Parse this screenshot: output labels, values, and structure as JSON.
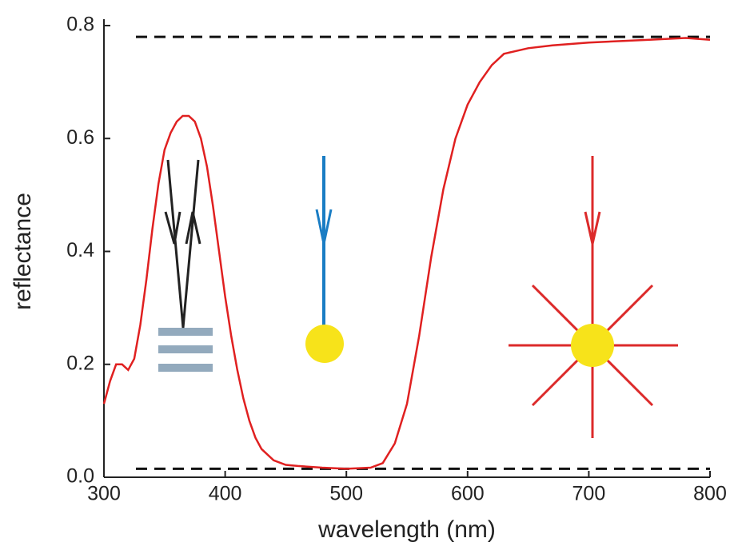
{
  "chart_data": {
    "type": "line",
    "xlabel": "wavelength (nm)",
    "ylabel": "reflectance",
    "x": [
      300,
      305,
      310,
      315,
      320,
      325,
      330,
      335,
      340,
      345,
      350,
      355,
      360,
      365,
      370,
      375,
      380,
      385,
      390,
      395,
      400,
      405,
      410,
      415,
      420,
      425,
      430,
      440,
      450,
      460,
      480,
      500,
      520,
      530,
      540,
      550,
      560,
      570,
      580,
      590,
      600,
      610,
      620,
      630,
      640,
      650,
      670,
      700,
      750,
      780,
      800
    ],
    "series": [
      {
        "color": "#e02020",
        "values": [
          0.13,
          0.17,
          0.2,
          0.2,
          0.19,
          0.21,
          0.27,
          0.35,
          0.44,
          0.52,
          0.58,
          0.61,
          0.63,
          0.64,
          0.64,
          0.63,
          0.6,
          0.55,
          0.48,
          0.4,
          0.32,
          0.25,
          0.19,
          0.14,
          0.1,
          0.07,
          0.05,
          0.03,
          0.022,
          0.02,
          0.017,
          0.015,
          0.017,
          0.025,
          0.06,
          0.13,
          0.25,
          0.39,
          0.51,
          0.6,
          0.66,
          0.7,
          0.73,
          0.75,
          0.755,
          0.76,
          0.765,
          0.77,
          0.775,
          0.778,
          0.775
        ]
      }
    ],
    "hlines": [
      0.78,
      0.015
    ],
    "xlim": [
      300,
      800
    ],
    "xticks": [
      300,
      400,
      500,
      600,
      700,
      800
    ],
    "ylim": [
      0,
      0.8
    ],
    "yticks": [
      {
        "value": 0,
        "label": "0.0"
      },
      0.2,
      0.4,
      0.6,
      0.8
    ]
  }
}
